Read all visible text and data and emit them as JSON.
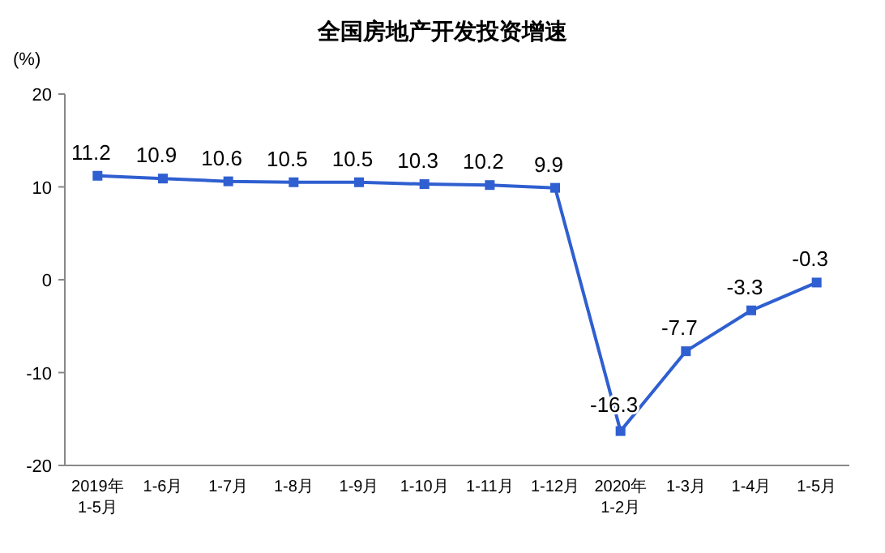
{
  "chart_data": {
    "type": "line",
    "title": "全国房地产开发投资增速",
    "ylabel": "(%)",
    "categories": [
      "2019年\n1-5月",
      "1-6月",
      "1-7月",
      "1-8月",
      "1-9月",
      "1-10月",
      "1-11月",
      "1-12月",
      "2020年\n1-2月",
      "1-3月",
      "1-4月",
      "1-5月"
    ],
    "series": [
      {
        "color": "#2f5fd0",
        "values": [
          11.2,
          10.9,
          10.6,
          10.5,
          10.5,
          10.3,
          10.2,
          9.9,
          -16.3,
          -7.7,
          -3.3,
          -0.3
        ]
      }
    ],
    "ylim": [
      -20,
      20
    ],
    "yticks": [
      -20,
      -10,
      0,
      10,
      20
    ],
    "grid": false,
    "marker": "square",
    "line_style": "solid",
    "data_labels": true
  }
}
